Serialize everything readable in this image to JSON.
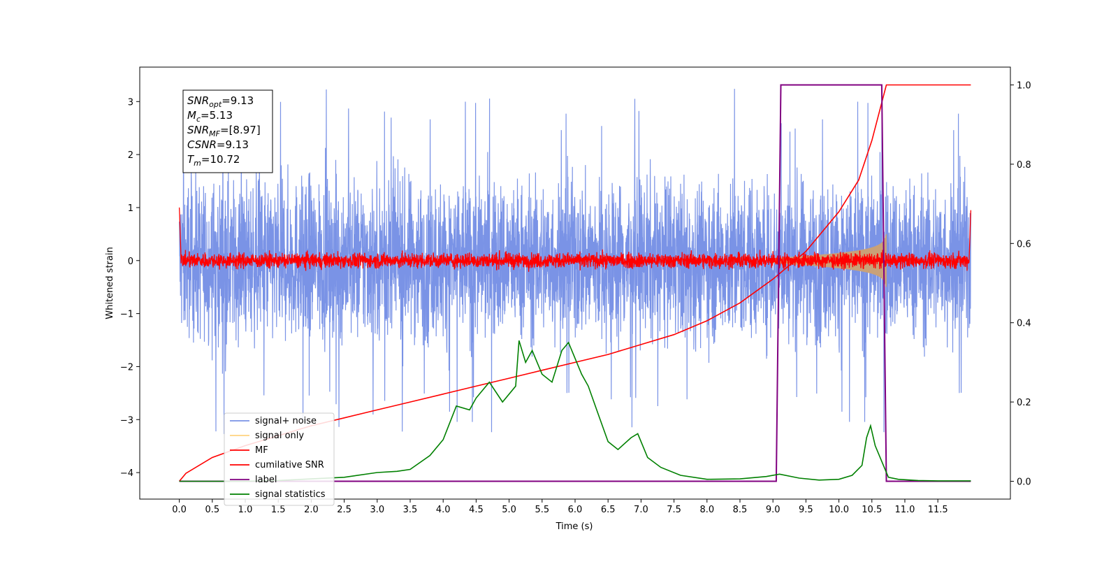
{
  "chart_data": {
    "type": "line",
    "xlabel": "Time (s)",
    "ylabel": "Whitened strain",
    "xlim": [
      -0.6,
      12.6
    ],
    "ylim": [
      -4.5,
      3.65
    ],
    "y2lim": [
      -0.045,
      1.045
    ],
    "x_ticks": [
      "0.0",
      "0.5",
      "1.0",
      "1.5",
      "2.0",
      "2.5",
      "3.0",
      "3.5",
      "4.0",
      "4.5",
      "5.0",
      "5.5",
      "6.0",
      "6.5",
      "7.0",
      "7.5",
      "8.0",
      "8.5",
      "9.0",
      "9.5",
      "10.0",
      "10.5",
      "11.0",
      "11.5"
    ],
    "y_ticks": [
      "3",
      "2",
      "1",
      "0",
      "−1",
      "−2",
      "−3",
      "−4"
    ],
    "y2_ticks": [
      "1.0",
      "0.8",
      "0.6",
      "0.4",
      "0.2",
      "0.0"
    ],
    "grid": false,
    "legend_position": "lower-left",
    "legend": [
      {
        "label": "signal+ noise",
        "color": "#7a93e6"
      },
      {
        "label": "signal only",
        "color": "#ffd27f"
      },
      {
        "label": "MF",
        "color": "#ff0000"
      },
      {
        "label": "cumilative SNR",
        "color": "#ff0000"
      },
      {
        "label": "label",
        "color": "#800080"
      },
      {
        "label": "signal statistics",
        "color": "#008000"
      }
    ],
    "info_box": {
      "snr_opt": {
        "base": "SNR",
        "sub": "opt",
        "value": "=9.13"
      },
      "mc": {
        "base": "M",
        "sub": "c",
        "value": "=5.13"
      },
      "snr_mf": {
        "base": "SNR",
        "sub": "MF",
        "value": "=[8.97]"
      },
      "csnr": {
        "base": "CSNR",
        "sub": "",
        "value": "=9.13"
      },
      "tm": {
        "base": "T",
        "sub": "m",
        "value": "=10.72"
      }
    },
    "series": [
      {
        "name": "signal+ noise",
        "axis": "left",
        "x_range": [
          0.0,
          12.0
        ],
        "band_y": [
          -1.65,
          1.55
        ],
        "spike_max": 3.3,
        "spike_min": -4.15
      },
      {
        "name": "signal only",
        "axis": "left",
        "chirp_x": [
          9.0,
          10.72
        ],
        "amplitude_at_end": 0.5
      },
      {
        "name": "MF",
        "axis": "left",
        "x_range": [
          0.0,
          12.0
        ],
        "band_y": [
          -0.15,
          0.15
        ]
      },
      {
        "name": "cumilative SNR",
        "axis": "right",
        "x": [
          0.0,
          0.1,
          0.5,
          1.0,
          1.5,
          2.0,
          2.5,
          3.0,
          3.5,
          4.0,
          4.5,
          5.0,
          5.5,
          6.0,
          6.5,
          7.0,
          7.5,
          8.0,
          8.5,
          9.0,
          9.5,
          10.0,
          10.3,
          10.5,
          10.72,
          12.0
        ],
        "y": [
          0.0,
          0.02,
          0.06,
          0.09,
          0.115,
          0.14,
          0.16,
          0.18,
          0.2,
          0.22,
          0.24,
          0.26,
          0.28,
          0.3,
          0.32,
          0.345,
          0.37,
          0.405,
          0.45,
          0.51,
          0.58,
          0.68,
          0.76,
          0.86,
          1.0,
          1.0
        ]
      },
      {
        "name": "label",
        "axis": "right",
        "x": [
          0.0,
          9.05,
          9.12,
          10.65,
          10.72,
          12.0
        ],
        "y": [
          0.0,
          0.0,
          1.0,
          1.0,
          0.0,
          0.0
        ]
      },
      {
        "name": "signal statistics",
        "axis": "right",
        "x": [
          0.0,
          0.5,
          1.0,
          1.5,
          2.0,
          2.5,
          3.0,
          3.3,
          3.5,
          3.8,
          4.0,
          4.2,
          4.4,
          4.5,
          4.7,
          4.9,
          5.1,
          5.15,
          5.25,
          5.35,
          5.5,
          5.65,
          5.8,
          5.9,
          6.1,
          6.2,
          6.35,
          6.5,
          6.65,
          6.85,
          6.95,
          7.1,
          7.3,
          7.6,
          8.0,
          8.5,
          8.9,
          9.1,
          9.4,
          9.7,
          10.0,
          10.2,
          10.35,
          10.42,
          10.48,
          10.55,
          10.65,
          10.75,
          10.9,
          11.2,
          11.5,
          12.0
        ],
        "y": [
          0.0,
          0.0,
          0.0,
          0.002,
          0.006,
          0.01,
          0.022,
          0.025,
          0.03,
          0.065,
          0.105,
          0.19,
          0.18,
          0.21,
          0.25,
          0.2,
          0.24,
          0.355,
          0.3,
          0.33,
          0.27,
          0.25,
          0.33,
          0.35,
          0.27,
          0.24,
          0.17,
          0.1,
          0.08,
          0.11,
          0.12,
          0.06,
          0.035,
          0.015,
          0.005,
          0.006,
          0.012,
          0.018,
          0.008,
          0.003,
          0.005,
          0.015,
          0.04,
          0.11,
          0.14,
          0.09,
          0.05,
          0.01,
          0.005,
          0.002,
          0.001,
          0.001
        ]
      }
    ]
  }
}
